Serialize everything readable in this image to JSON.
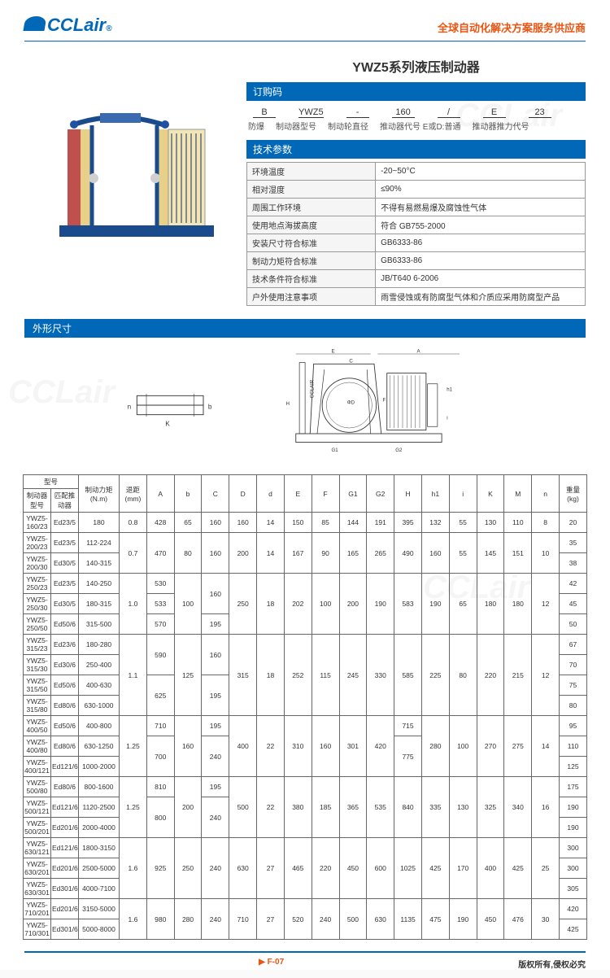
{
  "header": {
    "logo_text": "CCLair",
    "reg": "®",
    "tagline": "全球自动化解决方案服务供应商"
  },
  "title": "YWZ5系列液压制动器",
  "sections": {
    "order_code": "订购码",
    "tech_params": "技术参数",
    "dimensions": "外形尺寸"
  },
  "order": {
    "parts": [
      "B",
      "YWZ5",
      "-",
      "160",
      "/",
      "E",
      "23"
    ],
    "labels": [
      "防爆",
      "制动器型号",
      "制动轮直径",
      "推动器代号 E或D:普通",
      "推动器推力代号"
    ]
  },
  "specs": [
    [
      "环境温度",
      "-20~50°C"
    ],
    [
      "相对湿度",
      "≤90%"
    ],
    [
      "周围工作环境",
      "不得有易燃易爆及腐蚀性气体"
    ],
    [
      "使用地点海拔高度",
      "符合 GB755-2000"
    ],
    [
      "安装尺寸符合标准",
      "GB6333-86"
    ],
    [
      "制动力矩符合标准",
      "GB6333-86"
    ],
    [
      "技术条件符合标准",
      "JB/T640 6-2006"
    ],
    [
      "户外使用注意事项",
      "雨雪侵蚀或有防腐型气体和介质应采用防腐型产品"
    ]
  ],
  "dim_table": {
    "head1": [
      "型号",
      "制动力矩 (N.m)",
      "退距 (mm)",
      "A",
      "b",
      "C",
      "D",
      "d",
      "E",
      "F",
      "G1",
      "G2",
      "H",
      "h1",
      "i",
      "K",
      "M",
      "n",
      "重量 (kg)"
    ],
    "sub": [
      "制动器型号",
      "匹配推动器"
    ],
    "rows": [
      [
        "YWZ5-160/23",
        "Ed23/5",
        "180",
        "0.8",
        "428",
        "65",
        "160",
        "160",
        "14",
        "150",
        "85",
        "144",
        "191",
        "395",
        "132",
        "55",
        "130",
        "110",
        "8",
        "20"
      ],
      [
        "YWZ5-200/23",
        "Ed23/5",
        "112-224",
        "0.7",
        "470",
        "80",
        "160",
        "200",
        "14",
        "167",
        "90",
        "165",
        "265",
        "490",
        "160",
        "55",
        "145",
        "151",
        "10",
        "35"
      ],
      [
        "YWZ5-200/30",
        "Ed30/5",
        "140-315",
        "",
        "",
        "",
        "",
        "",
        "",
        "",
        "",
        "",
        "",
        "",
        "",
        "",
        "",
        "",
        "",
        "38"
      ],
      [
        "YWZ5-250/23",
        "Ed23/5",
        "140-250",
        "1.0",
        "530",
        "100",
        "160",
        "250",
        "18",
        "202",
        "100",
        "200",
        "190",
        "583",
        "190",
        "65",
        "180",
        "180",
        "12",
        "42"
      ],
      [
        "YWZ5-250/30",
        "Ed30/5",
        "180-315",
        "",
        "533",
        "",
        "",
        "",
        "",
        "",
        "",
        "",
        "",
        "",
        "",
        "",
        "",
        "",
        "",
        "45"
      ],
      [
        "YWZ5-250/50",
        "Ed50/6",
        "315-500",
        "",
        "570",
        "",
        "195",
        "",
        "",
        "",
        "",
        "",
        "",
        "",
        "",
        "",
        "",
        "",
        "",
        "50"
      ],
      [
        "YWZ5-315/23",
        "Ed23/6",
        "180-280",
        "1.1",
        "590",
        "125",
        "160",
        "315",
        "18",
        "252",
        "115",
        "245",
        "330",
        "585",
        "225",
        "80",
        "220",
        "215",
        "12",
        "67"
      ],
      [
        "YWZ5-315/30",
        "Ed30/6",
        "250-400",
        "",
        "",
        "",
        "",
        "",
        "",
        "",
        "",
        "",
        "",
        "",
        "",
        "",
        "",
        "",
        "",
        "70"
      ],
      [
        "YWZ5-315/50",
        "Ed50/6",
        "400-630",
        "",
        "625",
        "",
        "195",
        "",
        "",
        "",
        "",
        "",
        "",
        "",
        "",
        "",
        "",
        "",
        "",
        "75"
      ],
      [
        "YWZ5-315/80",
        "Ed80/6",
        "630-1000",
        "",
        "",
        "",
        "",
        "",
        "",
        "",
        "",
        "",
        "",
        "",
        "",
        "",
        "",
        "",
        "",
        "80"
      ],
      [
        "YWZ5-400/50",
        "Ed50/6",
        "400-800",
        "1.25",
        "710",
        "160",
        "195",
        "400",
        "22",
        "310",
        "160",
        "301",
        "420",
        "715",
        "280",
        "100",
        "270",
        "275",
        "14",
        "95"
      ],
      [
        "YWZ5-400/80",
        "Ed80/6",
        "630-1250",
        "",
        "700",
        "",
        "240",
        "",
        "",
        "",
        "",
        "",
        "",
        "775",
        "",
        "",
        "",
        "",
        "",
        "110"
      ],
      [
        "YWZ5-400/121",
        "Ed121/6",
        "1000-2000",
        "",
        "",
        "",
        "",
        "",
        "",
        "",
        "",
        "",
        "",
        "",
        "",
        "",
        "",
        "",
        "",
        "125"
      ],
      [
        "YWZ5-500/80",
        "Ed80/6",
        "800-1600",
        "1.25",
        "810",
        "200",
        "195",
        "500",
        "22",
        "380",
        "185",
        "365",
        "535",
        "840",
        "335",
        "130",
        "325",
        "340",
        "16",
        "175"
      ],
      [
        "YWZ5-500/121",
        "Ed121/6",
        "1120-2500",
        "",
        "800",
        "",
        "240",
        "",
        "",
        "",
        "",
        "",
        "",
        "",
        "",
        "",
        "",
        "",
        "",
        "190"
      ],
      [
        "YWZ5-500/201",
        "Ed201/6",
        "2000-4000",
        "",
        "",
        "",
        "",
        "",
        "",
        "",
        "",
        "",
        "",
        "",
        "",
        "",
        "",
        "",
        "",
        "190"
      ],
      [
        "YWZ5-630/121",
        "Ed121/6",
        "1800-3150",
        "1.6",
        "925",
        "250",
        "240",
        "630",
        "27",
        "465",
        "220",
        "450",
        "600",
        "1025",
        "425",
        "170",
        "400",
        "425",
        "25",
        "300"
      ],
      [
        "YWZ5-630/201",
        "Ed201/6",
        "2500-5000",
        "",
        "",
        "",
        "",
        "",
        "",
        "",
        "",
        "",
        "",
        "",
        "",
        "",
        "",
        "",
        "",
        "300"
      ],
      [
        "YWZ5-630/301",
        "Ed301/6",
        "4000-7100",
        "",
        "",
        "",
        "",
        "",
        "",
        "",
        "",
        "",
        "",
        "",
        "",
        "",
        "",
        "",
        "",
        "305"
      ],
      [
        "YWZ5-710/201",
        "Ed201/6",
        "3150-5000",
        "1.6",
        "980",
        "280",
        "240",
        "710",
        "27",
        "520",
        "240",
        "500",
        "630",
        "1135",
        "475",
        "190",
        "450",
        "476",
        "30",
        "420"
      ],
      [
        "YWZ5-710/301",
        "Ed301/6",
        "5000-8000",
        "",
        "",
        "",
        "",
        "",
        "",
        "",
        "",
        "",
        "",
        "",
        "",
        "",
        "",
        "",
        "",
        "425"
      ]
    ]
  },
  "footer": {
    "page": "F-07",
    "copyright": "版权所有,侵权必究"
  },
  "colors": {
    "brand": "#0068b7",
    "accent": "#e95513",
    "border": "#666666"
  }
}
